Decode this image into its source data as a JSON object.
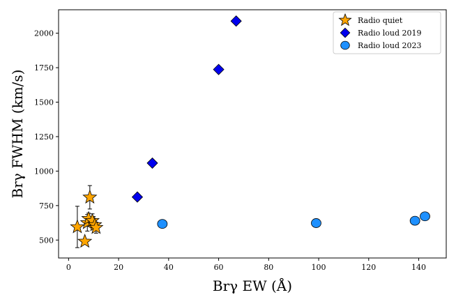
{
  "chart_data": {
    "type": "scatter",
    "xlabel": "Brγ EW (Å)",
    "ylabel": "Brγ FWHM (km/s)",
    "xlim": [
      -4,
      151
    ],
    "ylim": [
      370,
      2170
    ],
    "xticks": [
      0,
      20,
      40,
      60,
      80,
      100,
      120,
      140
    ],
    "yticks": [
      500,
      750,
      1000,
      1250,
      1500,
      1750,
      2000
    ],
    "legend_position": "top-right",
    "grid": false,
    "series": [
      {
        "name": "Radio quiet",
        "marker": "star",
        "color": "#FFA500",
        "points": [
          {
            "x": 3.5,
            "y": 595,
            "yerr": 150
          },
          {
            "x": 6.5,
            "y": 490,
            "yerr": 0
          },
          {
            "x": 7.5,
            "y": 625,
            "yerr": 60
          },
          {
            "x": 8.0,
            "y": 655,
            "yerr": 40
          },
          {
            "x": 8.5,
            "y": 810,
            "yerr": 85
          },
          {
            "x": 9.5,
            "y": 640,
            "yerr": 50
          },
          {
            "x": 10.5,
            "y": 610,
            "yerr": 40
          },
          {
            "x": 11.0,
            "y": 590,
            "yerr": 40
          }
        ]
      },
      {
        "name": "Radio loud 2019",
        "marker": "diamond",
        "color": "#0000EE",
        "points": [
          {
            "x": 27.5,
            "y": 812
          },
          {
            "x": 33.5,
            "y": 1058
          },
          {
            "x": 60.0,
            "y": 1737
          },
          {
            "x": 67.0,
            "y": 2088
          }
        ]
      },
      {
        "name": "Radio loud 2023",
        "marker": "circle",
        "color": "#1E90FF",
        "points": [
          {
            "x": 37.5,
            "y": 617
          },
          {
            "x": 99.0,
            "y": 623
          },
          {
            "x": 138.5,
            "y": 640
          },
          {
            "x": 142.5,
            "y": 672
          }
        ]
      }
    ]
  }
}
